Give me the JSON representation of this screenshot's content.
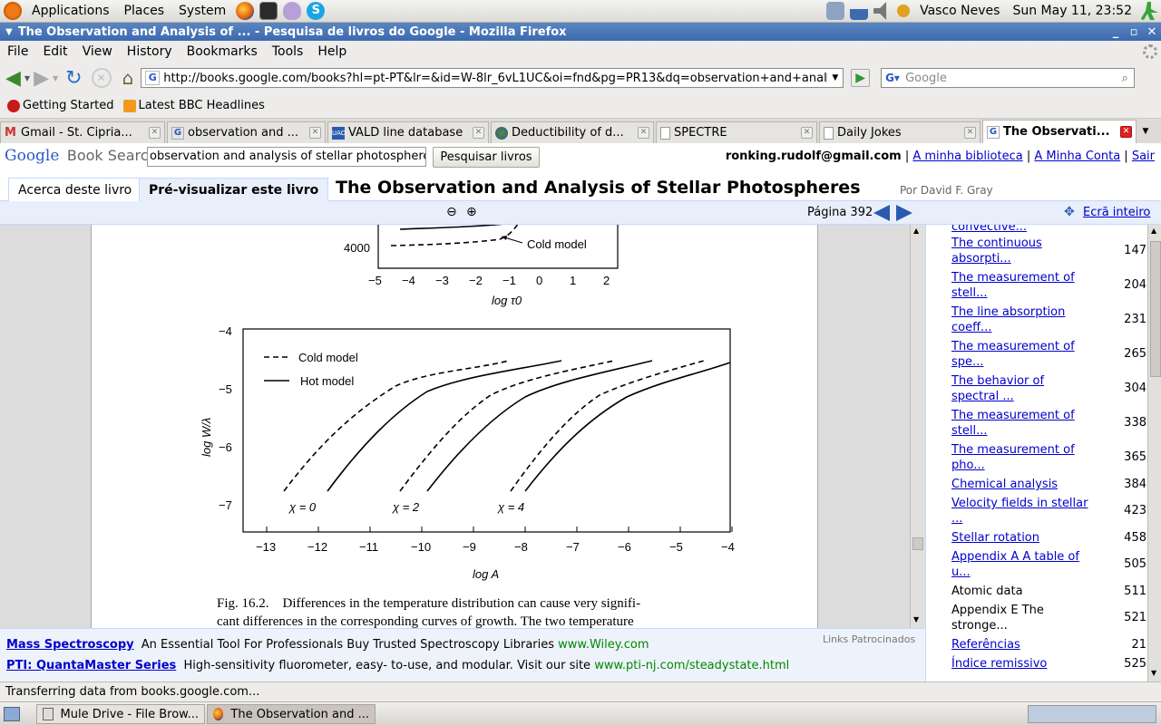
{
  "panel": {
    "menus": [
      "Applications",
      "Places",
      "System"
    ],
    "user": "Vasco Neves",
    "clock": "Sun May 11, 23:52"
  },
  "window": {
    "title": "The Observation and Analysis of ... - Pesquisa de livros do Google - Mozilla Firefox"
  },
  "menubar": [
    "File",
    "Edit",
    "View",
    "History",
    "Bookmarks",
    "Tools",
    "Help"
  ],
  "navbar": {
    "url": "http://books.google.com/books?hl=pt-PT&lr=&id=W-8lr_6vL1UC&oi=fnd&pg=PR13&dq=observation+and+analy",
    "search_placeholder": "Google"
  },
  "bookmarks": [
    "Getting Started",
    "Latest BBC Headlines"
  ],
  "tabs": [
    {
      "label": "Gmail - St. Cipria...",
      "icon": "gmail-icon"
    },
    {
      "label": "observation and ...",
      "icon": "google-icon"
    },
    {
      "label": "VALD line database",
      "icon": "vald-icon"
    },
    {
      "label": "Deductibility of d...",
      "icon": "globe-icon"
    },
    {
      "label": "SPECTRE",
      "icon": "page-icon"
    },
    {
      "label": "Daily Jokes",
      "icon": "page-icon"
    },
    {
      "label": "The Observati...",
      "icon": "google-icon"
    }
  ],
  "gbs": {
    "logo_google": "Google",
    "logo_text": "Book Search",
    "search_value": "observation and analysis of stellar photospheres",
    "search_button": "Pesquisar livros",
    "account_email": "ronking.rudolf@gmail.com",
    "library_link": "A minha biblioteca",
    "account_link": "A Minha Conta",
    "signout_link": "Sair",
    "tab_about": "Acerca deste livro",
    "tab_preview": "Pré-visualizar este livro",
    "book_title": "The Observation and Analysis of Stellar Photospheres",
    "author": "Por David F. Gray",
    "page_label": "Página 392",
    "fullscreen": "Ecrã inteiro"
  },
  "toc": [
    {
      "title": "convective...",
      "page": ""
    },
    {
      "title": "The continuous absorpti...",
      "page": "147"
    },
    {
      "title": "The measurement of stell...",
      "page": "204"
    },
    {
      "title": "The line absorption coeff...",
      "page": "231"
    },
    {
      "title": "The measurement of spe...",
      "page": "265"
    },
    {
      "title": "The behavior of spectral ...",
      "page": "304"
    },
    {
      "title": "The measurement of stell...",
      "page": "338"
    },
    {
      "title": "The measurement of pho...",
      "page": "365"
    },
    {
      "title": "Chemical analysis",
      "page": "384"
    },
    {
      "title": "Velocity fields in stellar ...",
      "page": "423"
    },
    {
      "title": "Stellar rotation",
      "page": "458"
    },
    {
      "title": "Appendix A A table of u...",
      "page": "505"
    },
    {
      "title": "Atomic data",
      "page": "511"
    },
    {
      "title": "Appendix E The stronge...",
      "page": "521"
    },
    {
      "title": "Referências",
      "page": "21"
    },
    {
      "title": "Índice remissivo",
      "page": "525"
    }
  ],
  "figure": {
    "top_ytick": "4000",
    "top_label": "Cold model",
    "top_xticks": [
      "−5",
      "−4",
      "−3",
      "−2",
      "−1",
      "0",
      "1",
      "2"
    ],
    "top_xlabel": "log τ0",
    "legend_cold": "Cold model",
    "legend_hot": "Hot model",
    "yticks": [
      "−4",
      "−5",
      "−6",
      "−7"
    ],
    "ylabel": "log W/λ",
    "xticks": [
      "−13",
      "−12",
      "−11",
      "−10",
      "−9",
      "−8",
      "−7",
      "−6",
      "−5",
      "−4"
    ],
    "xlabel": "log A",
    "chi_labels": [
      "χ = 0",
      "χ = 2",
      "χ = 4"
    ],
    "caption_line1": "Fig. 16.2.    Differences in the temperature distribution can cause very signifi-",
    "caption_line2": "cant differences in the corresponding curves of growth. The two temperature"
  },
  "ads": {
    "label": "Links Patrocinados",
    "ad1_title": "Mass Spectroscopy",
    "ad1_text": "An Essential Tool For Professionals Buy Trusted Spectroscopy Libraries",
    "ad1_url": "www.Wiley.com",
    "ad2_title": "PTI: QuantaMaster Series",
    "ad2_text": "High-sensitivity fluorometer, easy- to-use, and modular. Visit our site",
    "ad2_url": "www.pti-nj.com/steadystate.html"
  },
  "status": "Transferring data from books.google.com...",
  "taskbar": [
    {
      "label": "Mule Drive - File Brow..."
    },
    {
      "label": "The Observation and ..."
    }
  ]
}
